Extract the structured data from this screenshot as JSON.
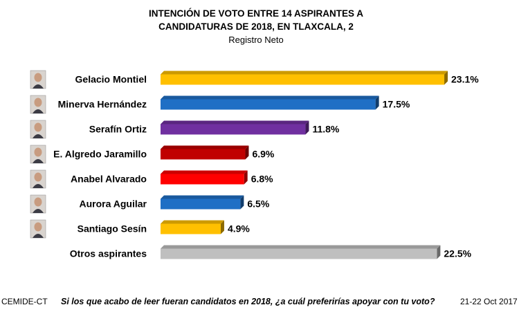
{
  "title_line1": "INTENCIÓN DE VOTO ENTRE  14 ASPIRANTES A",
  "title_line2": "CANDIDATURAS DE 2018, EN TLAXCALA, 2",
  "subtitle": "Registro Neto",
  "footer": {
    "source": "CEMIDE-CT",
    "question": "Si los que acabo de leer fueran candidatos en 2018, ¿a cuál preferirías apoyar con tu voto?",
    "date": "21-22 Oct 2017"
  },
  "chart_data": {
    "type": "bar",
    "orientation": "horizontal",
    "title": "INTENCIÓN DE VOTO ENTRE  14 ASPIRANTES A CANDIDATURAS DE 2018, EN TLAXCALA, 2",
    "subtitle": "Registro Neto",
    "xlabel": "",
    "ylabel": "",
    "grid": false,
    "categories": [
      "Gelacio Montiel",
      "Minerva Hernández",
      "Serafín Ortiz",
      "E. Algredo Jaramillo",
      "Anabel Alvarado",
      "Aurora Aguilar",
      "Santiago Sesín",
      "Otros aspirantes"
    ],
    "values": [
      23.1,
      17.5,
      11.8,
      6.9,
      6.8,
      6.5,
      4.9,
      22.5
    ],
    "value_labels": [
      "23.1%",
      "17.5%",
      "11.8%",
      "6.9%",
      "6.8%",
      "6.5%",
      "4.9%",
      "22.5%"
    ],
    "colors": [
      "#FFC000",
      "#1F6FC5",
      "#7030A0",
      "#C00000",
      "#FF0000",
      "#1F6FC5",
      "#FFC000",
      "#BFBFBF"
    ],
    "portraits": [
      "person-photo",
      "person-photo",
      "person-photo",
      "person-photo",
      "person-photo",
      "person-photo",
      "person-photo",
      "none"
    ]
  }
}
